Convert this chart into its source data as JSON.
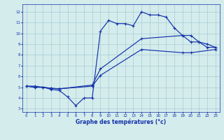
{
  "background_color": "#d4ecec",
  "grid_color": "#a8ccd4",
  "line_color": "#1432aa",
  "xlabel": "Graphe des températures (°c)",
  "xlim": [
    -0.5,
    23.5
  ],
  "ylim": [
    2.7,
    12.7
  ],
  "xticks": [
    0,
    1,
    2,
    3,
    4,
    5,
    6,
    7,
    8,
    9,
    10,
    11,
    12,
    13,
    14,
    15,
    16,
    17,
    18,
    19,
    20,
    21,
    22,
    23
  ],
  "yticks": [
    3,
    4,
    5,
    6,
    7,
    8,
    9,
    10,
    11,
    12
  ],
  "s1_x": [
    0,
    1,
    2,
    3,
    4,
    5,
    6,
    7,
    8,
    9,
    10,
    11,
    12,
    13,
    14,
    15,
    16,
    17,
    18,
    19,
    20,
    21,
    22,
    23
  ],
  "s1_y": [
    5.1,
    5.1,
    5.0,
    4.8,
    4.7,
    4.1,
    3.3,
    4.0,
    4.0,
    10.2,
    11.2,
    10.9,
    10.9,
    10.7,
    12.0,
    11.7,
    11.7,
    11.5,
    10.5,
    9.8,
    9.2,
    9.2,
    8.7,
    8.7
  ],
  "s2_x": [
    0,
    1,
    2,
    3,
    4,
    8,
    9,
    14,
    19,
    20,
    21,
    22,
    23
  ],
  "s2_y": [
    5.1,
    5.0,
    5.0,
    4.9,
    4.85,
    5.2,
    6.7,
    9.5,
    9.8,
    9.8,
    9.2,
    9.0,
    8.7
  ],
  "s3_x": [
    0,
    1,
    2,
    3,
    4,
    8,
    9,
    14,
    19,
    20,
    23
  ],
  "s3_y": [
    5.1,
    5.0,
    5.0,
    4.9,
    4.85,
    5.1,
    6.1,
    8.5,
    8.2,
    8.2,
    8.5
  ]
}
